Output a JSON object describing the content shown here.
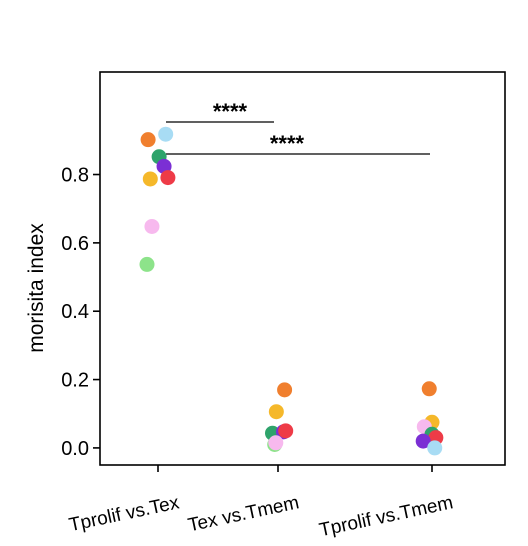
{
  "chart_data": {
    "type": "scatter",
    "title": "",
    "xlabel": "",
    "ylabel": "morisita index",
    "categories": [
      "Tprolif vs.Tex",
      "Tex vs.Tmem",
      "Tprolif vs.Tmem"
    ],
    "yticks": [
      "0.0",
      "0.2",
      "0.4",
      "0.6",
      "0.8"
    ],
    "ytick_values": [
      0.0,
      0.2,
      0.4,
      0.6,
      0.8
    ],
    "ylim": [
      -0.05,
      1.1
    ],
    "grid": false,
    "legend": "none",
    "points": [
      {
        "category": 0,
        "jitter": -0.18,
        "value": 0.902,
        "color": "#f07f2e"
      },
      {
        "category": 0,
        "jitter": 0.14,
        "value": 0.918,
        "color": "#a8dcf4"
      },
      {
        "category": 0,
        "jitter": 0.02,
        "value": 0.852,
        "color": "#2ea36b"
      },
      {
        "category": 0,
        "jitter": 0.11,
        "value": 0.824,
        "color": "#7b2fd4"
      },
      {
        "category": 0,
        "jitter": -0.14,
        "value": 0.787,
        "color": "#f5b82a"
      },
      {
        "category": 0,
        "jitter": 0.18,
        "value": 0.791,
        "color": "#ee3b47"
      },
      {
        "category": 0,
        "jitter": -0.11,
        "value": 0.648,
        "color": "#f7b9ee"
      },
      {
        "category": 0,
        "jitter": -0.2,
        "value": 0.537,
        "color": "#8de38a"
      },
      {
        "category": 1,
        "jitter": 0.12,
        "value": 0.17,
        "color": "#f07f2e"
      },
      {
        "category": 1,
        "jitter": -0.03,
        "value": 0.106,
        "color": "#f5b82a"
      },
      {
        "category": 1,
        "jitter": -0.1,
        "value": 0.043,
        "color": "#2ea36b"
      },
      {
        "category": 1,
        "jitter": 0.1,
        "value": 0.047,
        "color": "#7b2fd4"
      },
      {
        "category": 1,
        "jitter": 0.14,
        "value": 0.05,
        "color": "#ee3b47"
      },
      {
        "category": 1,
        "jitter": -0.06,
        "value": 0.01,
        "color": "#8de38a"
      },
      {
        "category": 1,
        "jitter": -0.04,
        "value": 0.015,
        "color": "#f7b9ee"
      },
      {
        "category": 2,
        "jitter": -0.05,
        "value": 0.173,
        "color": "#f07f2e"
      },
      {
        "category": 2,
        "jitter": 0.0,
        "value": 0.075,
        "color": "#f5b82a"
      },
      {
        "category": 2,
        "jitter": -0.14,
        "value": 0.062,
        "color": "#f7b9ee"
      },
      {
        "category": 2,
        "jitter": 0.0,
        "value": 0.04,
        "color": "#2ea36b"
      },
      {
        "category": 2,
        "jitter": 0.07,
        "value": 0.03,
        "color": "#ee3b47"
      },
      {
        "category": 2,
        "jitter": -0.16,
        "value": 0.02,
        "color": "#7b2fd4"
      },
      {
        "category": 2,
        "jitter": 0.05,
        "value": 0.0,
        "color": "#a8dcf4"
      }
    ],
    "significance": [
      {
        "from": 0,
        "to": 1,
        "label": "****"
      },
      {
        "from": 0,
        "to": 2,
        "label": "****"
      }
    ]
  }
}
